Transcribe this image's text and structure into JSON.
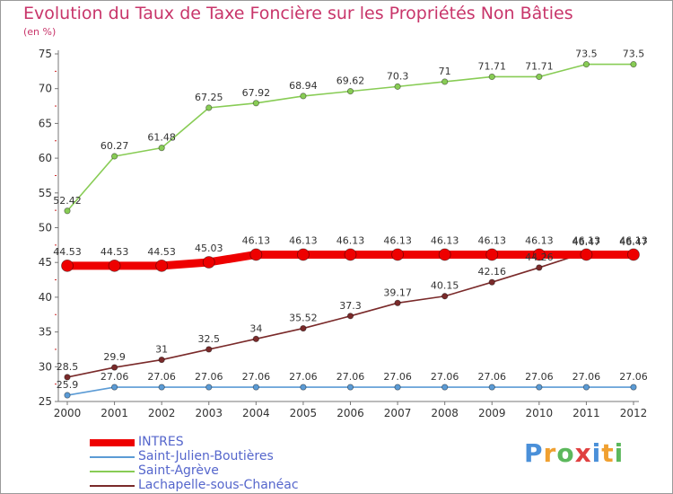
{
  "chart_data": {
    "type": "line",
    "title": "Evolution du Taux de Taxe Foncière sur les Propriétés Non Bâties",
    "subtitle": "(en %)",
    "x": [
      "2000",
      "2001",
      "2002",
      "2003",
      "2004",
      "2005",
      "2006",
      "2007",
      "2008",
      "2009",
      "2010",
      "2011",
      "2012"
    ],
    "ylim": [
      25,
      75
    ],
    "yticks": [
      25,
      30,
      35,
      40,
      45,
      50,
      55,
      60,
      65,
      70,
      75
    ],
    "series": [
      {
        "name": "INTRES",
        "color": "#ee0000",
        "values": [
          44.53,
          44.53,
          44.53,
          45.03,
          46.13,
          46.13,
          46.13,
          46.13,
          46.13,
          46.13,
          46.13,
          46.13,
          46.13
        ],
        "labels": [
          "44.53",
          "44.53",
          "44.53",
          "45.03",
          "46.13",
          "46.13",
          "46.13",
          "46.13",
          "46.13",
          "46.13",
          "46.13",
          "46.13",
          "46.13"
        ]
      },
      {
        "name": "Saint-Julien-Boutières",
        "color": "#5b9bd5",
        "values": [
          25.9,
          27.06,
          27.06,
          27.06,
          27.06,
          27.06,
          27.06,
          27.06,
          27.06,
          27.06,
          27.06,
          27.06,
          27.06
        ],
        "labels": [
          "25.9",
          "27.06",
          "27.06",
          "27.06",
          "27.06",
          "27.06",
          "27.06",
          "27.06",
          "27.06",
          "27.06",
          "27.06",
          "27.06",
          "27.06"
        ]
      },
      {
        "name": "Saint-Agrève",
        "color": "#88cc55",
        "values": [
          52.42,
          60.27,
          61.48,
          67.25,
          67.92,
          68.94,
          69.62,
          70.3,
          71,
          71.71,
          71.71,
          73.5,
          73.5
        ],
        "labels": [
          "52.42",
          "60.27",
          "61.48",
          "67.25",
          "67.92",
          "68.94",
          "69.62",
          "70.3",
          "71",
          "71.71",
          "71.71",
          "73.5",
          "73.5"
        ]
      },
      {
        "name": "Lachapelle-sous-Chanéac",
        "color": "#7a2a2a",
        "values": [
          28.5,
          29.9,
          31,
          32.5,
          34,
          35.52,
          37.3,
          39.17,
          40.15,
          42.16,
          44.26,
          46.47,
          46.47
        ],
        "labels": [
          "28.5",
          "29.9",
          "31",
          "32.5",
          "34",
          "35.52",
          "37.3",
          "39.17",
          "40.15",
          "42.16",
          "44.26",
          "46.47",
          "46.47"
        ]
      }
    ],
    "legend": [
      "INTRES",
      "Saint-Julien-Boutières",
      "Saint-Agrève",
      "Lachapelle-sous-Chanéac"
    ],
    "grid": false,
    "legend_position": "bottom-left"
  },
  "brand": {
    "letters": [
      "P",
      "r",
      "o",
      "x",
      "i",
      "t",
      "i"
    ],
    "colors": [
      "#4a90d9",
      "#f0a030",
      "#5cb85c",
      "#e04040",
      "#4a90d9",
      "#f0a030",
      "#5cb85c"
    ]
  }
}
